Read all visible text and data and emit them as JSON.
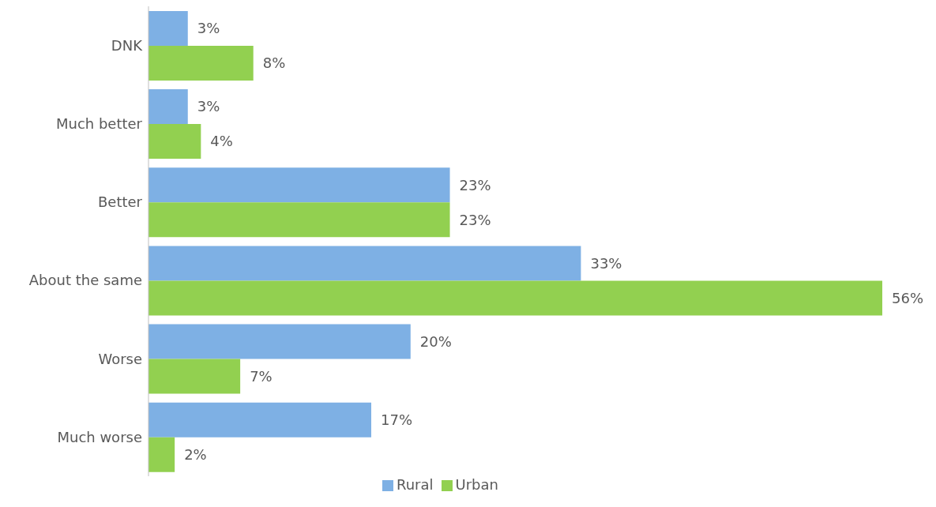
{
  "chart_data": {
    "type": "bar",
    "orientation": "horizontal",
    "categories": [
      "DNK",
      "Much better",
      "Better",
      "About the same",
      "Worse",
      "Much worse"
    ],
    "series": [
      {
        "name": "Rural",
        "color": "#7eb0e4",
        "values": [
          3,
          3,
          23,
          33,
          20,
          17
        ],
        "value_labels": [
          "3%",
          "3%",
          "23%",
          "33%",
          "20%",
          "17%"
        ]
      },
      {
        "name": "Urban",
        "color": "#92d050",
        "values": [
          8,
          4,
          23,
          56,
          7,
          2
        ],
        "value_labels": [
          "8%",
          "4%",
          "23%",
          "56%",
          "7%",
          "2%"
        ]
      }
    ],
    "legend": "bottom",
    "grid": false,
    "tick_labels": "y"
  }
}
